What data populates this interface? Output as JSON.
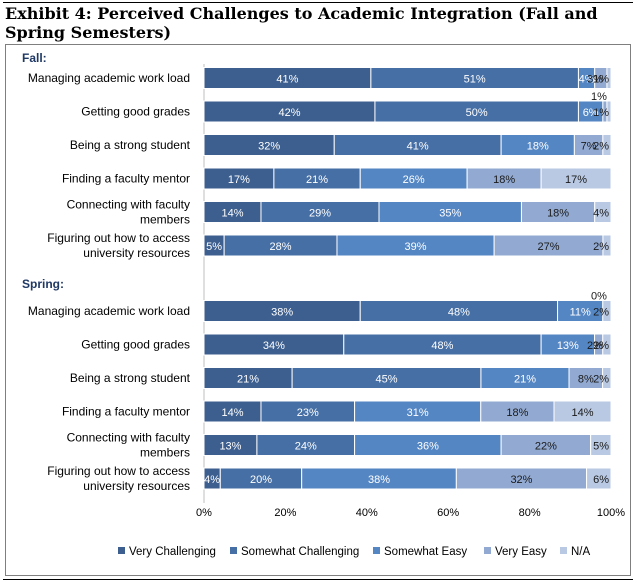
{
  "title": "Exhibit 4: Perceived Challenges to Academic Integration (Fall and Spring Semesters)",
  "chart_data": {
    "type": "bar",
    "orientation": "horizontal-stacked-100",
    "title": "Exhibit 4: Perceived Challenges to Academic Integration (Fall and Spring Semesters)",
    "xlim": [
      0,
      100
    ],
    "xticks": [
      "0%",
      "20%",
      "40%",
      "60%",
      "80%",
      "100%"
    ],
    "legend_position": "bottom",
    "series_names": [
      "Very Challenging",
      "Somewhat Challenging",
      "Somewhat Easy",
      "Very Easy",
      "N/A"
    ],
    "colors": [
      "#3d5f8f",
      "#466fa5",
      "#5586c4",
      "#92aad2",
      "#b9c9e3"
    ],
    "groups": [
      {
        "label": "Fall:",
        "items": [
          {
            "category": [
              "Managing academic work load"
            ],
            "values": [
              41,
              51,
              4,
              3,
              1
            ],
            "labels": [
              "41%",
              "51%",
              "4%",
              "3%",
              "1%"
            ]
          },
          {
            "category": [
              "Getting good grades"
            ],
            "values": [
              42,
              50,
              6,
              1,
              1
            ],
            "labels": [
              "42%",
              "50%",
              "6%",
              "1%",
              "1%"
            ]
          },
          {
            "category": [
              "Being a strong student"
            ],
            "values": [
              32,
              41,
              18,
              7,
              2
            ],
            "labels": [
              "32%",
              "41%",
              "18%",
              "7%",
              "2%"
            ]
          },
          {
            "category": [
              "Finding a faculty mentor"
            ],
            "values": [
              17,
              21,
              26,
              18,
              17
            ],
            "labels": [
              "17%",
              "21%",
              "26%",
              "18%",
              "17%"
            ]
          },
          {
            "category": [
              "Connecting with faculty",
              "members"
            ],
            "values": [
              14,
              29,
              35,
              18,
              4
            ],
            "labels": [
              "14%",
              "29%",
              "35%",
              "18%",
              "4%"
            ]
          },
          {
            "category": [
              "Figuring out how to access",
              "university resources"
            ],
            "values": [
              5,
              28,
              39,
              27,
              2
            ],
            "labels": [
              "5%",
              "28%",
              "39%",
              "27%",
              "2%"
            ]
          }
        ]
      },
      {
        "label": "Spring:",
        "items": [
          {
            "category": [
              "Managing academic work load"
            ],
            "values": [
              38,
              48,
              11,
              0,
              2
            ],
            "labels": [
              "38%",
              "48%",
              "11%",
              "0%",
              "2%"
            ]
          },
          {
            "category": [
              "Getting good grades"
            ],
            "values": [
              34,
              48,
              13,
              2,
              2
            ],
            "labels": [
              "34%",
              "48%",
              "13%",
              "2%",
              "2%"
            ]
          },
          {
            "category": [
              "Being a strong student"
            ],
            "values": [
              21,
              45,
              21,
              8,
              2
            ],
            "labels": [
              "21%",
              "45%",
              "21%",
              "8%",
              "2%"
            ]
          },
          {
            "category": [
              "Finding a faculty mentor"
            ],
            "values": [
              14,
              23,
              31,
              18,
              14
            ],
            "labels": [
              "14%",
              "23%",
              "31%",
              "18%",
              "14%"
            ]
          },
          {
            "category": [
              "Connecting with faculty",
              "members"
            ],
            "values": [
              13,
              24,
              36,
              22,
              5
            ],
            "labels": [
              "13%",
              "24%",
              "36%",
              "22%",
              "5%"
            ]
          },
          {
            "category": [
              "Figuring out how to access",
              "university resources"
            ],
            "values": [
              4,
              20,
              38,
              32,
              6
            ],
            "labels": [
              "4%",
              "20%",
              "38%",
              "32%",
              "6%"
            ]
          }
        ]
      }
    ]
  }
}
